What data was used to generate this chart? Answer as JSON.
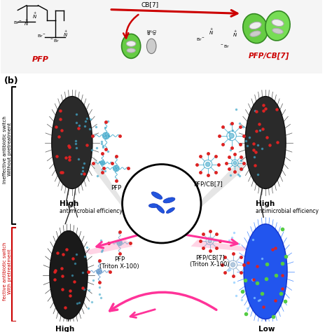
{
  "bg_color": "#ffffff",
  "panel_b_label": "(b)",
  "pfp_label": "PFP",
  "pfpcb7_label": "PFP/CB[7]",
  "cb7_label": "CB[7]",
  "label_high": "High",
  "label_low": "Low",
  "label_antimicrobial": "antimicrobial efficiency",
  "label_ineffective_1": "Ineffective antibiotic switch",
  "label_ineffective_2": "Without pretreatment",
  "label_effective_1": "fective antibiotic switch",
  "label_effective_2": "With pretreatment",
  "label_pfp_center": "PFP",
  "label_pfpcb7_center": "PFP/CB[7]",
  "label_pfp_triton_1": "PFP",
  "label_pfp_triton_2": "(Triton X-100)",
  "label_pfpcb7_triton_1": "PFP/CB[7]",
  "label_pfpcb7_triton_2": "(Triton X-100)",
  "red_color": "#cc0000",
  "pink_color": "#ff3399",
  "dark_bacteria_color": "#2a2a2a",
  "blue_bacteria_color": "#2255ee",
  "green_color": "#55bb33",
  "cyan_color": "#44aacc",
  "red_dot": "#dd2222",
  "gray_arrow": "#999999",
  "top_bg": "#f5f5f5"
}
